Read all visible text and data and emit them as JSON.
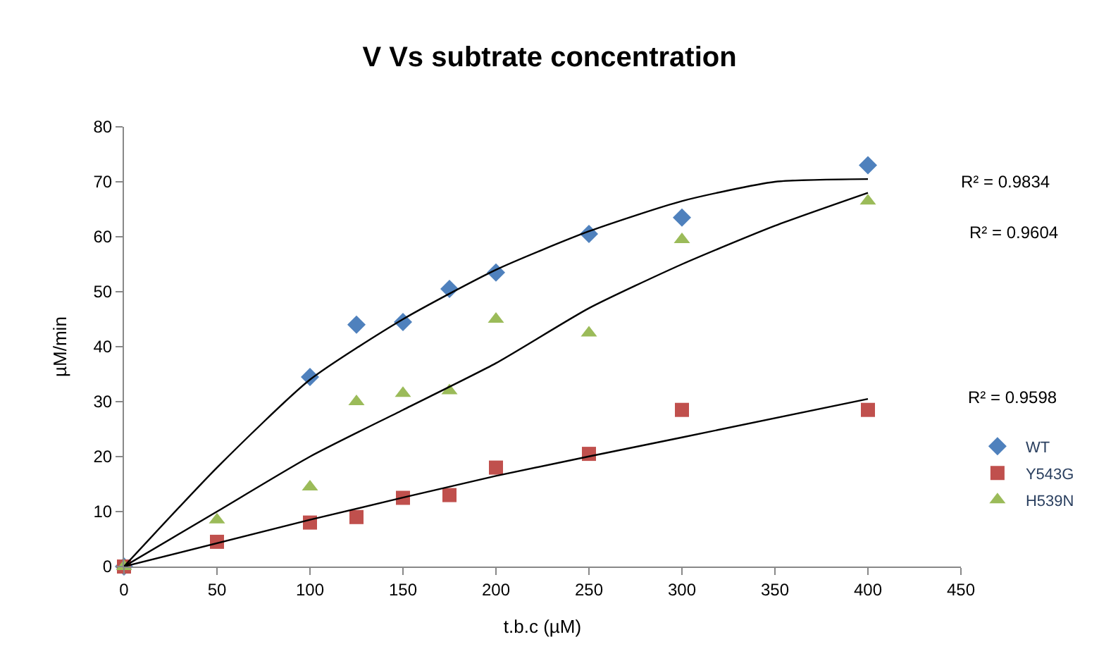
{
  "chart_data": {
    "type": "scatter",
    "title": "V Vs subtrate concentration",
    "xlabel": "t.b.c (µM)",
    "ylabel": "µM/min",
    "xlim": [
      0,
      450
    ],
    "xticks": [
      0,
      50,
      100,
      150,
      200,
      250,
      300,
      350,
      400,
      450
    ],
    "ylim": [
      0,
      80
    ],
    "yticks": [
      0,
      10,
      20,
      30,
      40,
      50,
      60,
      70,
      80
    ],
    "legend": "right",
    "series": [
      {
        "name": "WT",
        "color": "#4f81bd",
        "marker": "diamond",
        "x": [
          0,
          100,
          125,
          150,
          175,
          200,
          250,
          300,
          400
        ],
        "values": [
          0,
          34.5,
          44,
          44.5,
          50.5,
          53.5,
          60.5,
          63.5,
          73
        ]
      },
      {
        "name": "Y543G",
        "color": "#c0504d",
        "marker": "square",
        "x": [
          0,
          50,
          100,
          125,
          150,
          175,
          200,
          250,
          300,
          400
        ],
        "values": [
          0,
          4.5,
          8,
          9,
          12.5,
          13,
          18,
          20.5,
          28.5,
          28.5
        ]
      },
      {
        "name": "H539N",
        "color": "#9bbb59",
        "marker": "triangle",
        "x": [
          0,
          50,
          100,
          125,
          150,
          175,
          200,
          250,
          300,
          400
        ],
        "values": [
          0,
          8.5,
          14.5,
          30,
          31.5,
          32,
          45,
          42.5,
          59.5,
          66.5
        ]
      },
      {
        "type": "line",
        "color": "#000000",
        "marker": "none",
        "x": [
          0,
          50,
          100,
          150,
          200,
          250,
          300,
          350,
          400
        ],
        "values": [
          0,
          18,
          34,
          45,
          54,
          61,
          66.5,
          70,
          70.5
        ]
      },
      {
        "type": "line",
        "color": "#000000",
        "marker": "none",
        "x": [
          0,
          50,
          100,
          150,
          200,
          250,
          300,
          350,
          400
        ],
        "values": [
          0,
          10,
          20,
          28.5,
          37,
          47,
          55,
          62,
          68
        ]
      },
      {
        "type": "line",
        "color": "#000000",
        "marker": "none",
        "x": [
          0,
          100,
          200,
          300,
          400
        ],
        "values": [
          0,
          8.5,
          16.5,
          23.5,
          30.5
        ]
      }
    ],
    "annotations": [
      "R² = 0.9834",
      "R² = 0.9604",
      "R² = 0.9598"
    ]
  }
}
